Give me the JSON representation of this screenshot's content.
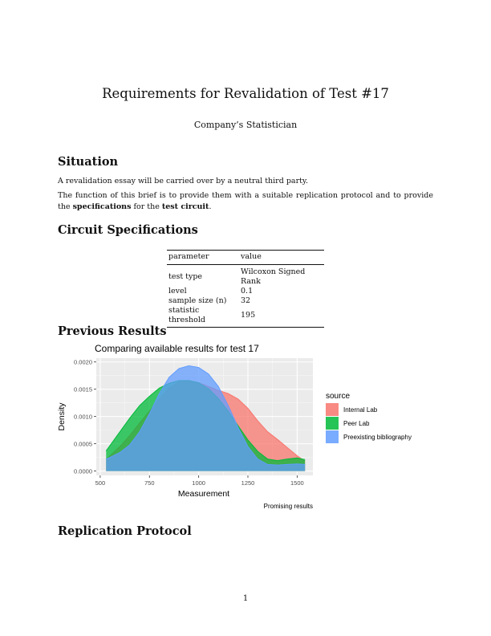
{
  "document": {
    "title": "Requirements for Revalidation of Test #17",
    "author": "Company’s Statistician",
    "page_number": "1"
  },
  "sections": {
    "situation": {
      "heading": "Situation",
      "para1": "A revalidation essay will be carried over by a neutral third party.",
      "para2_before": "The function of this brief is to provide them with a suitable replication protocol and to provide the ",
      "para2_bold1": "specifications",
      "para2_mid": " for the ",
      "para2_bold2": "test circuit",
      "para2_end": "."
    },
    "circuit": {
      "heading": "Circuit Specifications",
      "table": {
        "headers": [
          "parameter",
          "value"
        ],
        "rows": [
          [
            "test type",
            "Wilcoxon Signed Rank"
          ],
          [
            "level",
            "0.1"
          ],
          [
            "sample size (n)",
            "32"
          ],
          [
            "statistic threshold",
            "195"
          ]
        ]
      }
    },
    "previous": {
      "heading": "Previous Results"
    },
    "replication": {
      "heading": "Replication Protocol"
    }
  },
  "chart_data": {
    "type": "area",
    "title": "Comparing available results for test 17",
    "xlabel": "Measurement",
    "ylabel": "Density",
    "caption": "Promising results",
    "legend_title": "source",
    "legend_position": "right",
    "xlim": [
      480,
      1580
    ],
    "ylim": [
      -8e-05,
      0.00207
    ],
    "xticks": [
      500,
      750,
      1000,
      1250,
      1500
    ],
    "xtick_labels": [
      "500",
      "750",
      "1000",
      "1250",
      "1500"
    ],
    "yticks": [
      0,
      0.0005,
      0.001,
      0.0015,
      0.002
    ],
    "ytick_labels": [
      "0.0000",
      "0.0005",
      "0.0010",
      "0.0015",
      "0.0020"
    ],
    "grid": true,
    "x": [
      530,
      550,
      600,
      650,
      700,
      750,
      800,
      850,
      900,
      950,
      1000,
      1050,
      1100,
      1150,
      1200,
      1250,
      1300,
      1350,
      1400,
      1450,
      1500,
      1540
    ],
    "series": [
      {
        "name": "Internal Lab",
        "color": "#F8766D",
        "values": [
          0.00022,
          0.00028,
          0.00045,
          0.00065,
          0.00088,
          0.0011,
          0.00132,
          0.00152,
          0.00163,
          0.00166,
          0.00162,
          0.00155,
          0.00148,
          0.00142,
          0.00132,
          0.00115,
          0.00092,
          0.00072,
          0.00058,
          0.00043,
          0.00028,
          0.00018
        ]
      },
      {
        "name": "Peer Lab",
        "color": "#00BA38",
        "values": [
          0.00037,
          0.00047,
          0.00072,
          0.00097,
          0.0012,
          0.00137,
          0.00152,
          0.00161,
          0.00166,
          0.00166,
          0.00162,
          0.00151,
          0.00133,
          0.0011,
          0.00083,
          0.00057,
          0.00036,
          0.00022,
          0.00019,
          0.00022,
          0.00024,
          0.00021
        ]
      },
      {
        "name": "Preexisting bibliography",
        "color": "#619CFF",
        "values": [
          0.00022,
          0.00025,
          0.00034,
          0.00048,
          0.00072,
          0.00105,
          0.00142,
          0.00172,
          0.00188,
          0.00193,
          0.0019,
          0.00178,
          0.00155,
          0.0012,
          0.0008,
          0.00045,
          0.00022,
          0.00012,
          0.00011,
          0.00012,
          0.00013,
          0.00012
        ]
      }
    ]
  }
}
